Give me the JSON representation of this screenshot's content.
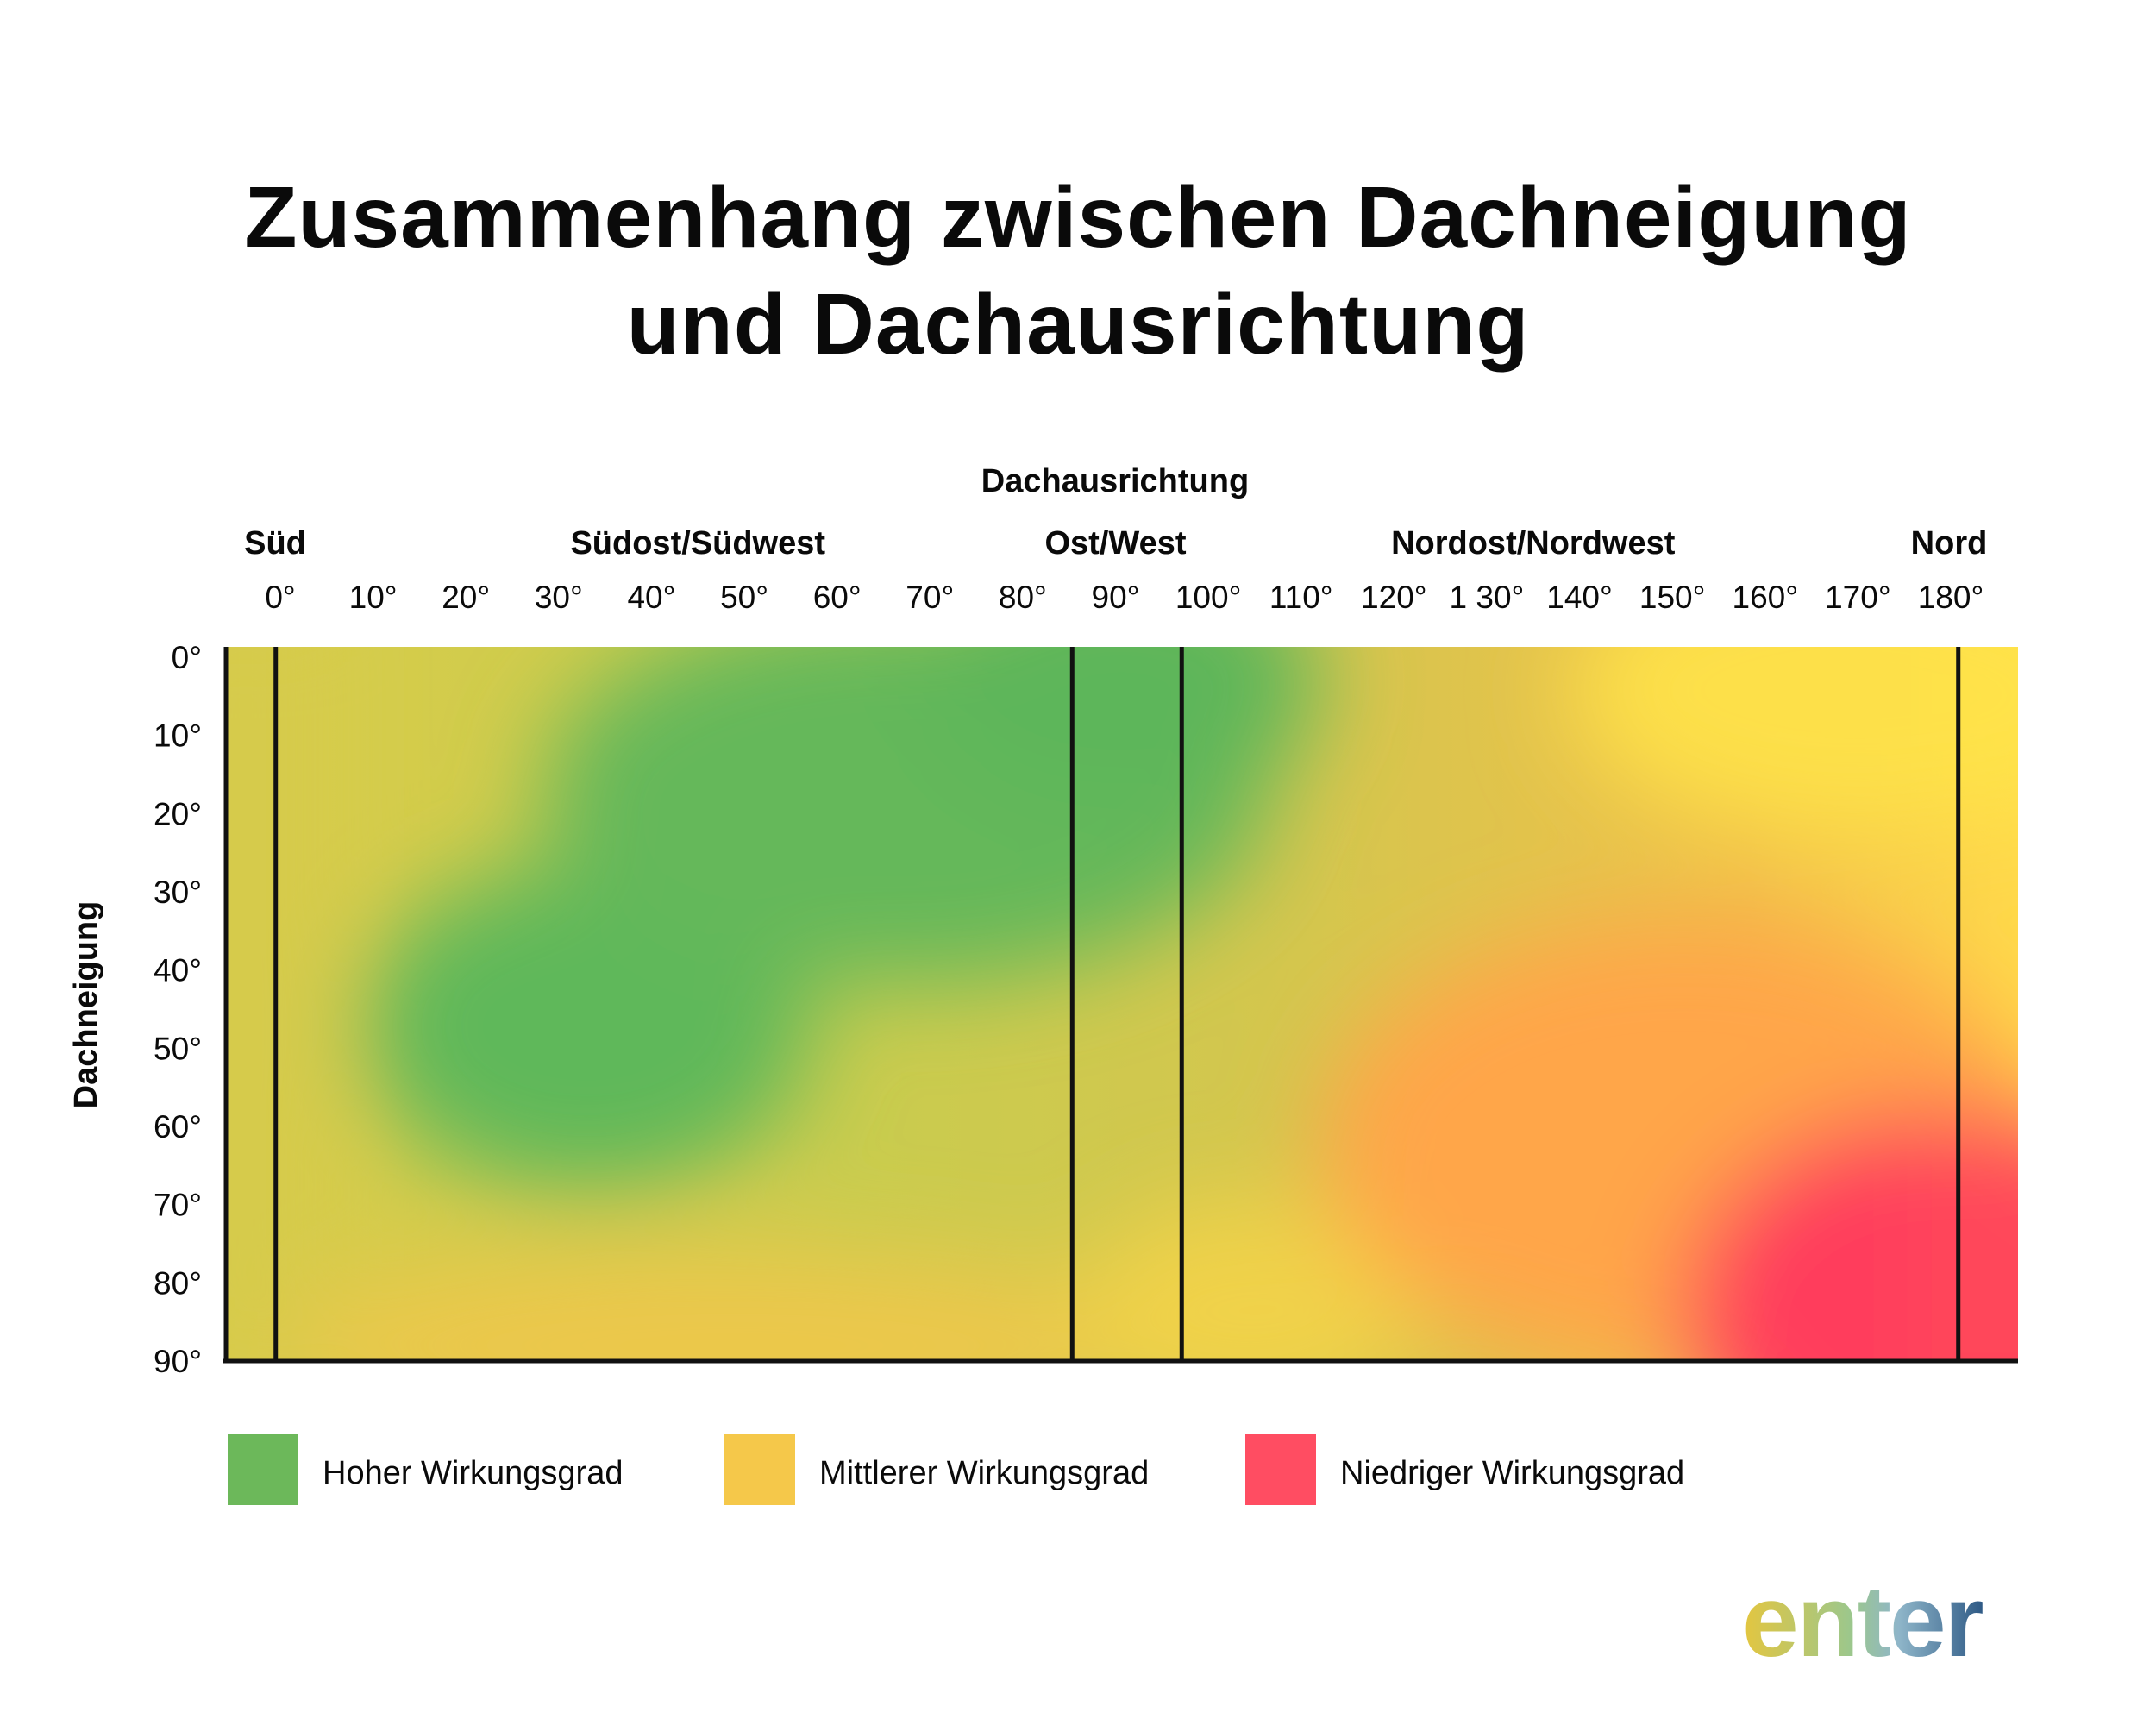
{
  "title_lines": [
    "Zusammenhang zwischen Dachneigung",
    "und Dachausrichtung"
  ],
  "logo": "enter",
  "chart_data": {
    "type": "heatmap",
    "title": "Zusammenhang zwischen Dachneigung und Dachausrichtung",
    "xlabel": "Dachausrichtung",
    "ylabel": "Dachneigung",
    "x_axis_position": "top",
    "xlim": [
      0,
      180
    ],
    "ylim": [
      0,
      90
    ],
    "y_inverted": true,
    "x_ticks": [
      {
        "value": 0,
        "label": "0°"
      },
      {
        "value": 10,
        "label": "10°"
      },
      {
        "value": 20,
        "label": "20°"
      },
      {
        "value": 30,
        "label": "30°"
      },
      {
        "value": 40,
        "label": "40°"
      },
      {
        "value": 50,
        "label": "50°"
      },
      {
        "value": 60,
        "label": "60°"
      },
      {
        "value": 70,
        "label": "70°"
      },
      {
        "value": 80,
        "label": "80°"
      },
      {
        "value": 90,
        "label": "90°"
      },
      {
        "value": 100,
        "label": "100°"
      },
      {
        "value": 110,
        "label": "110°"
      },
      {
        "value": 120,
        "label": "120°"
      },
      {
        "value": 130,
        "label": "1 30°"
      },
      {
        "value": 140,
        "label": "140°"
      },
      {
        "value": 150,
        "label": "150°"
      },
      {
        "value": 160,
        "label": "160°"
      },
      {
        "value": 170,
        "label": "170°"
      },
      {
        "value": 180,
        "label": "180°"
      }
    ],
    "y_ticks": [
      {
        "value": 0,
        "label": "0°"
      },
      {
        "value": 10,
        "label": "10°"
      },
      {
        "value": 20,
        "label": "20°"
      },
      {
        "value": 30,
        "label": "30°"
      },
      {
        "value": 40,
        "label": "40°"
      },
      {
        "value": 50,
        "label": "50°"
      },
      {
        "value": 60,
        "label": "60°"
      },
      {
        "value": 70,
        "label": "70°"
      },
      {
        "value": 80,
        "label": "80°"
      },
      {
        "value": 90,
        "label": "90°"
      }
    ],
    "direction_labels": [
      {
        "label": "Süd",
        "at": 0
      },
      {
        "label": "Südost/Südwest",
        "at": 45
      },
      {
        "label": "Ost/West",
        "at": 90
      },
      {
        "label": "Nordost/Nordwest",
        "at": 135
      },
      {
        "label": "Nord",
        "at": 180
      }
    ],
    "divider_lines_x": [
      5,
      85,
      96,
      174
    ],
    "colors": {
      "high": "#6cb85a",
      "medium": "#f5c84a",
      "low": "#ff4d62"
    },
    "legend": {
      "position": "bottom",
      "items": [
        {
          "label": "Hoher Wirkungsgrad",
          "color": "#6cb85a"
        },
        {
          "label": "Mittlerer Wirkungsgrad",
          "color": "#f5c84a"
        },
        {
          "label": "Niedriger Wirkungsgrad",
          "color": "#ff4d62"
        }
      ]
    },
    "efficiency_regions": [
      {
        "level": "high",
        "center_orientation": 40,
        "center_tilt": 45
      },
      {
        "level": "high",
        "center_orientation": 90,
        "center_tilt": 5
      },
      {
        "level": "medium",
        "center_orientation": 0,
        "center_tilt": 45
      },
      {
        "level": "medium",
        "center_orientation": 90,
        "center_tilt": 85
      },
      {
        "level": "medium",
        "center_orientation": 170,
        "center_tilt": 0
      },
      {
        "level": "low",
        "center_orientation": 180,
        "center_tilt": 90
      }
    ]
  }
}
